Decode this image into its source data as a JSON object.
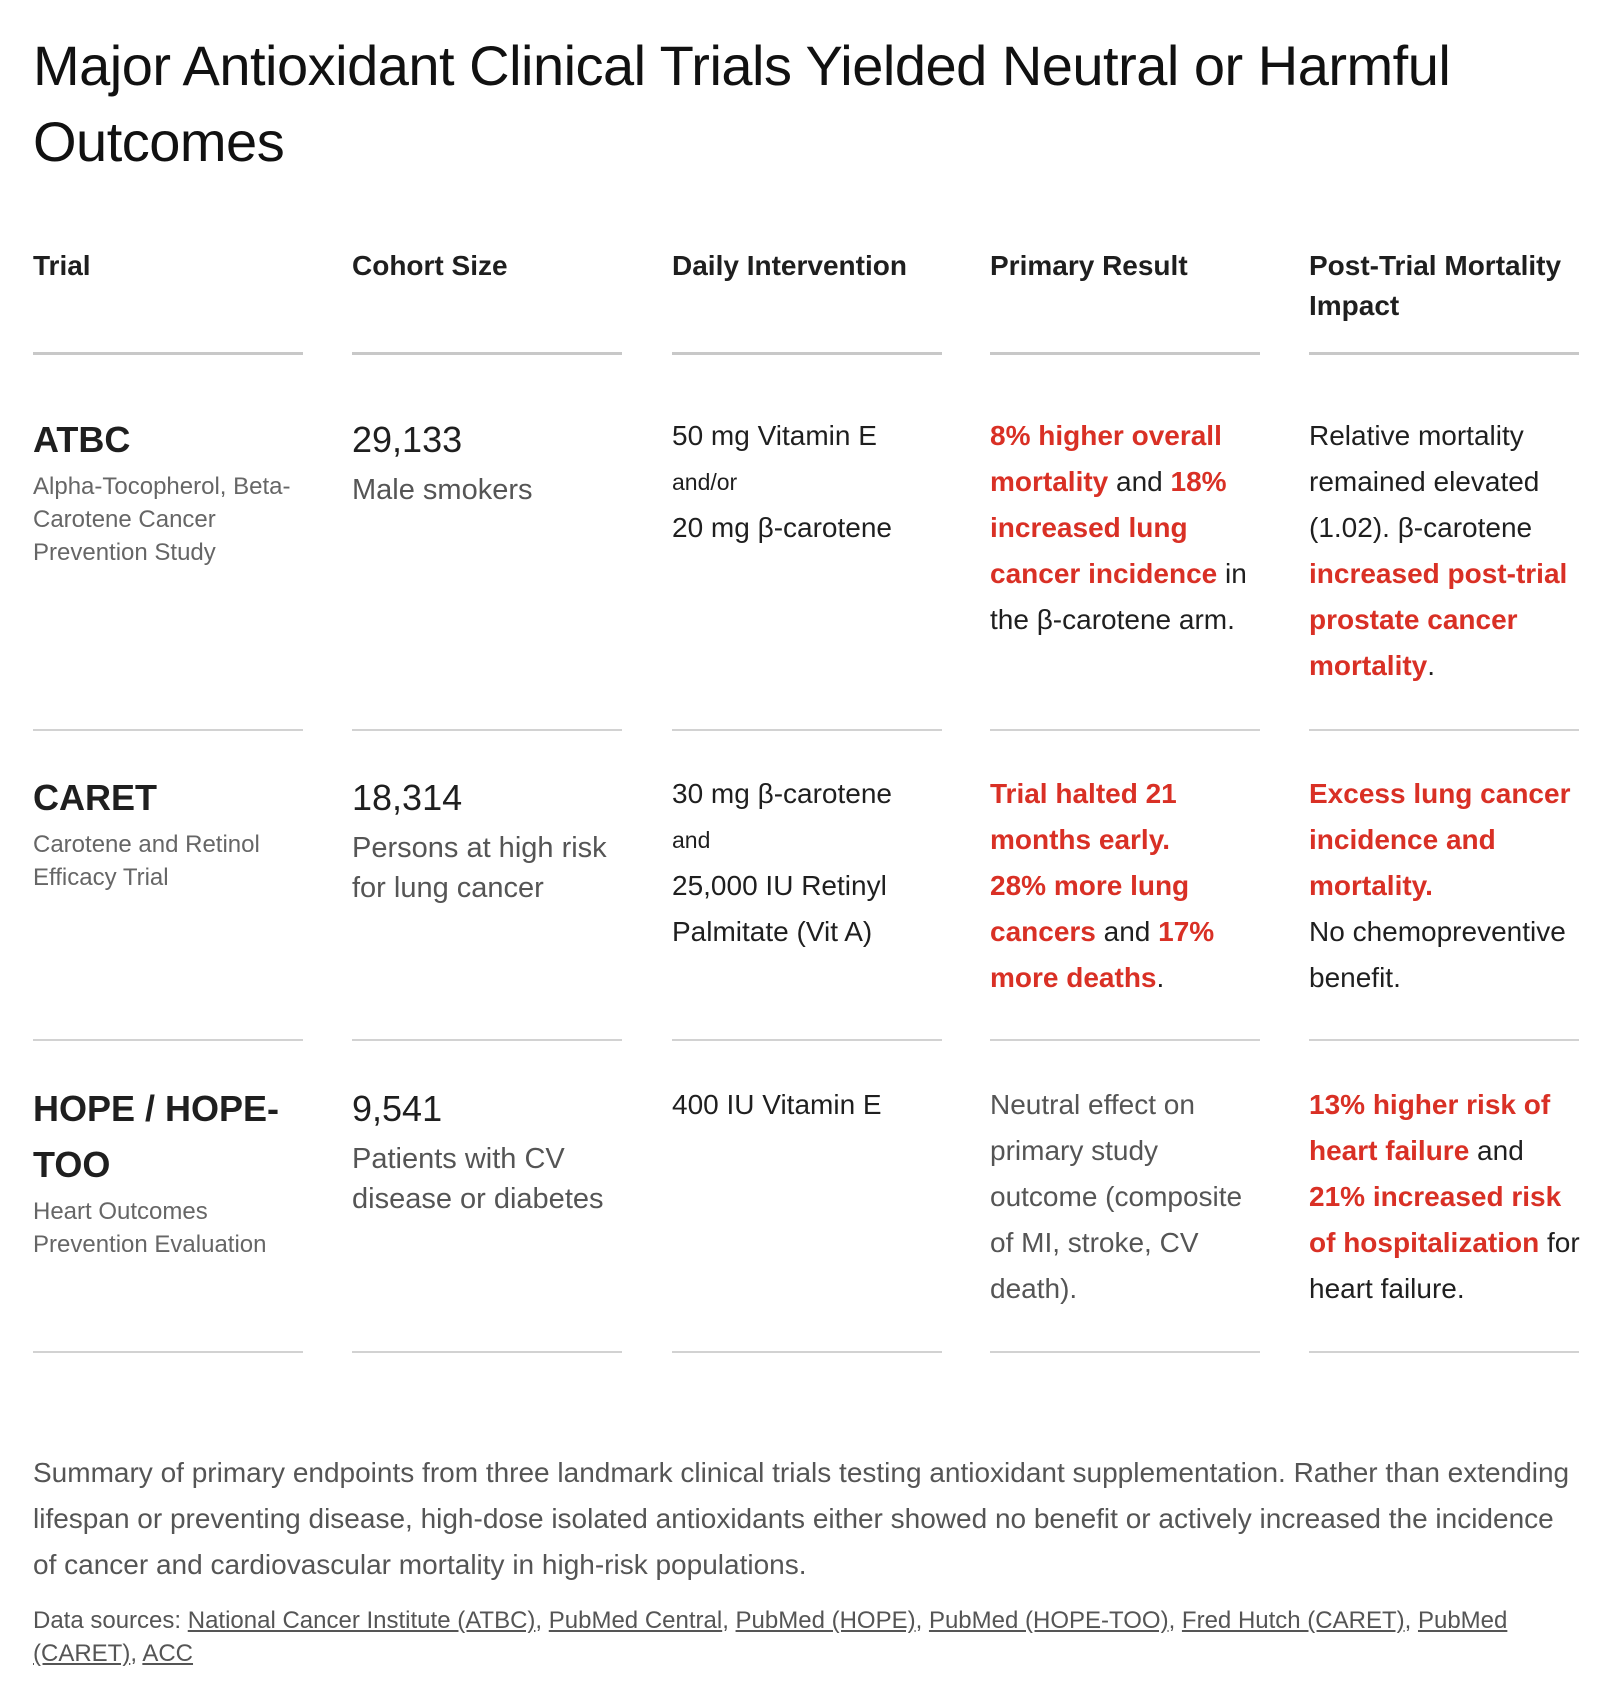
{
  "title": "Major Antioxidant Clinical Trials Yielded Neutral or Harmful Outcomes",
  "colors": {
    "harm": "#d93025",
    "text": "#1f1f1f",
    "muted": "#555555",
    "rule": "#c8c8c8"
  },
  "headers": {
    "trial": "Trial",
    "cohort": "Cohort Size",
    "intervention": "Daily Intervention",
    "result": "Primary Result",
    "mortality": "Post-Trial Mortality Impact"
  },
  "rows": [
    {
      "name": "ATBC",
      "full_name": "Alpha-Tocopherol, Beta-Carotene Cancer Prevention Study",
      "cohort_size": "29,133",
      "cohort_desc": "Male smokers",
      "intervention": {
        "line1": "50 mg Vitamin E",
        "conj": "and/or",
        "line2": "20 mg β-carotene"
      },
      "result": {
        "r1": "8% higher overall mortality",
        "t1": " and ",
        "r2": "18% increased lung cancer incidence",
        "t2": " in the β-carotene arm."
      },
      "mortality": {
        "t1": "Relative mortality remained elevated (1.02). β-carotene ",
        "r1": "increased post-trial prostate cancer mortality",
        "t2": "."
      }
    },
    {
      "name": "CARET",
      "full_name": "Carotene and Retinol Efficacy Trial",
      "cohort_size": "18,314",
      "cohort_desc": "Persons at high risk for lung cancer",
      "intervention": {
        "line1": "30 mg β-carotene",
        "conj": "and",
        "line2": "25,000 IU Retinyl Palmitate (Vit A)"
      },
      "result": {
        "r1": "Trial halted 21 months early.",
        "r2": "28% more lung cancers",
        "t1": " and ",
        "r3": "17% more deaths",
        "t2": "."
      },
      "mortality": {
        "r1": "Excess lung cancer incidence and mortality.",
        "t1": "No chemopreventive benefit."
      }
    },
    {
      "name": "HOPE / HOPE-TOO",
      "full_name": "Heart Outcomes Prevention Evaluation",
      "cohort_size": "9,541",
      "cohort_desc": "Patients with CV disease or diabetes",
      "intervention": {
        "line1": "400 IU Vitamin E"
      },
      "result": {
        "t1": "Neutral effect on primary study outcome (composite of MI, stroke, CV death)."
      },
      "mortality": {
        "r1": "13% higher risk of heart failure",
        "t1": " and ",
        "r2": "21% increased risk of hospitalization",
        "t2": " for heart failure."
      }
    }
  ],
  "summary": "Summary of primary endpoints from three landmark clinical trials testing antioxidant supplementation. Rather than extending lifespan or preventing disease, high-dose isolated antioxidants either showed no benefit or actively increased the incidence of cancer and cardiovascular mortality in high-risk populations.",
  "sources": {
    "label": "Data sources: ",
    "sep": ", ",
    "links": [
      "National Cancer Institute (ATBC)",
      "PubMed Central",
      "PubMed (HOPE)",
      "PubMed (HOPE-TOO)",
      "Fred Hutch (CARET)",
      "PubMed (CARET)",
      "ACC"
    ]
  }
}
